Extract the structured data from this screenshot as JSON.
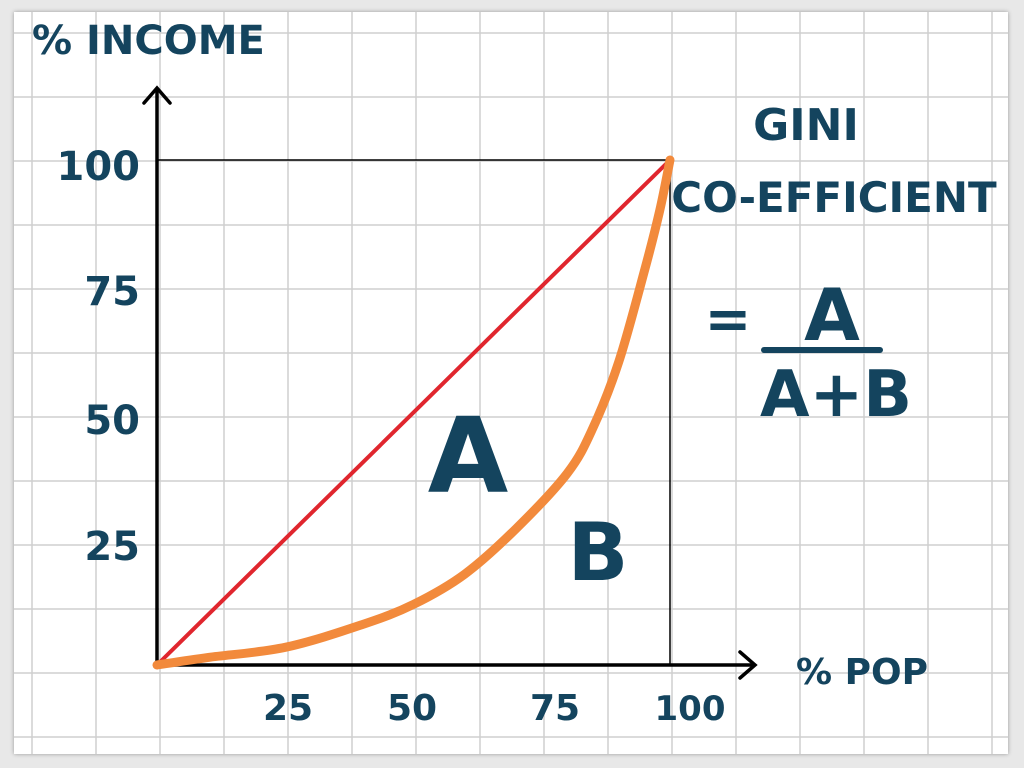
{
  "chart_data": {
    "type": "line",
    "xlabel": "% POP",
    "ylabel": "% INCOME",
    "xlim": [
      0,
      100
    ],
    "ylim": [
      0,
      100
    ],
    "x_ticks": [
      "25",
      "50",
      "75",
      "100"
    ],
    "y_ticks": [
      "25",
      "50",
      "75",
      "100"
    ],
    "grid": true,
    "series": [
      {
        "x": [
          0,
          100
        ],
        "y": [
          0,
          100
        ]
      },
      {
        "x": [
          0,
          10,
          25,
          40,
          50,
          60,
          70,
          80,
          85,
          90,
          95,
          98,
          100
        ],
        "y": [
          0,
          1.5,
          3.5,
          8,
          12,
          18,
          27,
          38,
          47,
          60,
          78,
          90,
          100
        ]
      }
    ],
    "annotations": {
      "region_a": "A",
      "region_b": "B",
      "title_line1": "GINI",
      "title_line2": "CO-EFFICIENT",
      "equals": "=",
      "numerator": "A",
      "denominator": "A+B"
    },
    "colors": {
      "equality_line": "#e0262e",
      "lorenz_curve": "#f28a3c",
      "ink": "#14445e",
      "grid": "#cfcfcf",
      "axes": "#000000"
    }
  }
}
